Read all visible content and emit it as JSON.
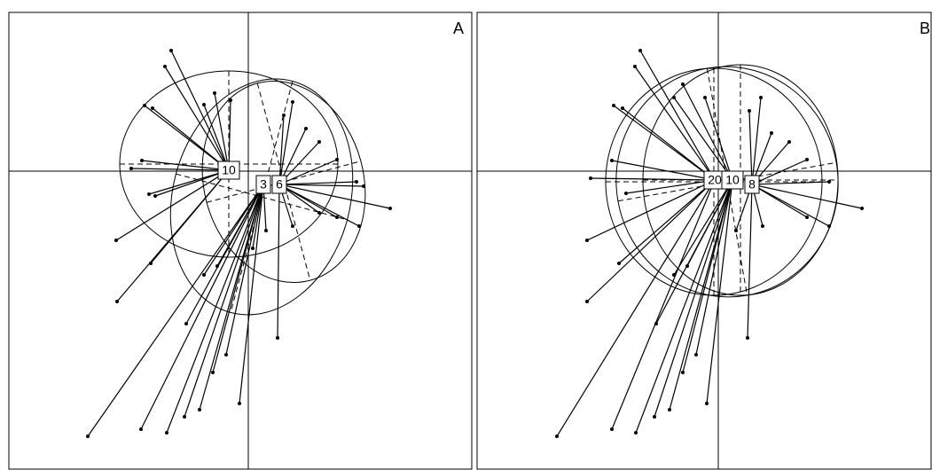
{
  "chart_data": [
    {
      "type": "scatter",
      "title": "A",
      "xlim": [
        -270,
        252
      ],
      "ylim": [
        -336,
        179
      ],
      "groups": [
        {
          "name": "10",
          "center": [
            -22,
            1
          ],
          "ellipse": {
            "cx": -22,
            "cy": 8,
            "rx": 123,
            "ry": 105,
            "angle": 0
          },
          "x": [
            -87,
            -94,
            -117,
            -108,
            -132,
            -120,
            -112,
            -105,
            -50,
            -38,
            -20,
            -149,
            -148,
            -110
          ],
          "y": [
            136,
            118,
            74,
            71,
            3,
            12,
            -26,
            -28,
            75,
            88,
            80,
            -78,
            -147,
            -104
          ]
        },
        {
          "name": "3",
          "center": [
            17,
            -15
          ],
          "ellipse": {
            "cx": 15,
            "cy": -29,
            "rx": 100,
            "ry": 135,
            "angle": -15
          },
          "x": [
            -181,
            -121,
            -92,
            -72,
            -55,
            -10,
            -35,
            -50,
            -70,
            -40,
            -25,
            5,
            20
          ],
          "y": [
            -299,
            -291,
            -295,
            -277,
            -269,
            -262,
            -107,
            -117,
            -172,
            -227,
            -207,
            -87,
            -67
          ]
        },
        {
          "name": "6",
          "center": [
            35,
            -15
          ],
          "ellipse": {
            "cx": 40,
            "cy": -12,
            "rx": 90,
            "ry": 115,
            "angle": 15
          },
          "x": [
            33,
            40,
            50,
            65,
            80,
            100,
            122,
            130,
            160,
            125,
            100,
            80,
            50
          ],
          "y": [
            -188,
            63,
            78,
            48,
            33,
            13,
            -12,
            -17,
            -42,
            -62,
            -52,
            -47,
            -62
          ]
        }
      ]
    },
    {
      "type": "scatter",
      "title": "B",
      "xlim": [
        -272,
        240
      ],
      "ylim": [
        -336,
        179
      ],
      "groups": [
        {
          "name": "20",
          "center": [
            -4,
            -10
          ],
          "ellipse": {
            "cx": -5,
            "cy": -12,
            "rx": 122,
            "ry": 128,
            "angle": 0
          },
          "x": [
            -88,
            -94,
            -118,
            -108,
            -144,
            -120,
            -104,
            -148,
            -148,
            -112,
            -182,
            -120
          ],
          "y": [
            136,
            118,
            74,
            71,
            -8,
            12,
            -25,
            -78,
            -147,
            -104,
            -299,
            -291
          ]
        },
        {
          "name": "10",
          "center": [
            16,
            -10
          ],
          "ellipse": {
            "cx": 10,
            "cy": -12,
            "rx": 125,
            "ry": 130,
            "angle": 10
          },
          "x": [
            -93,
            -72,
            -55,
            -13,
            -35,
            -50,
            -70,
            -40,
            -25,
            -50,
            -40,
            -15
          ],
          "y": [
            -295,
            -277,
            -269,
            -262,
            -107,
            -117,
            -172,
            -227,
            -207,
            83,
            98,
            83
          ]
        },
        {
          "name": "8",
          "center": [
            38,
            -15
          ],
          "ellipse": {
            "cx": 25,
            "cy": -10,
            "rx": 110,
            "ry": 130,
            "angle": 0
          },
          "x": [
            33,
            35,
            48,
            60,
            80,
            100,
            125,
            162,
            125,
            100,
            50,
            20
          ],
          "y": [
            -188,
            68,
            83,
            43,
            33,
            13,
            -12,
            -42,
            -62,
            -52,
            -62,
            -67
          ]
        }
      ]
    }
  ]
}
